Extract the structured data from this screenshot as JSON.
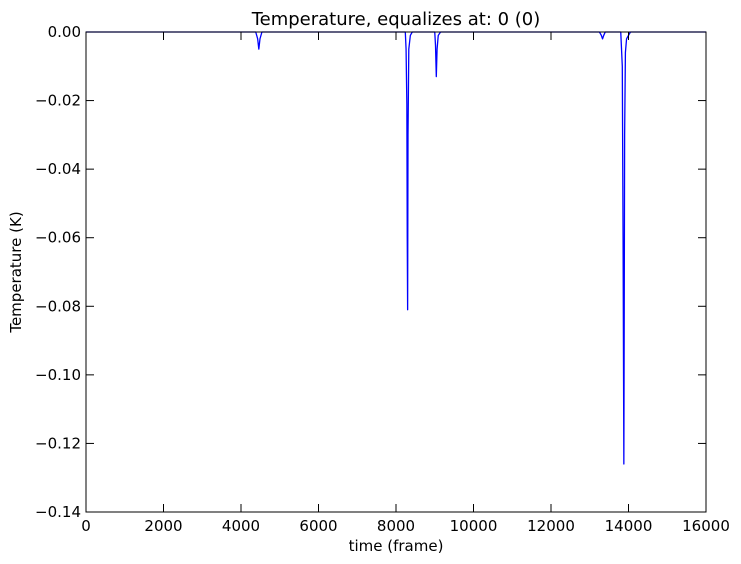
{
  "chart_data": {
    "type": "line",
    "title": "Temperature, equalizes at: 0 (0)",
    "xlabel": "time (frame)",
    "ylabel": "Temperature (K)",
    "xlim": [
      0,
      16000
    ],
    "ylim": [
      -0.14,
      0.0
    ],
    "xticks": [
      0,
      2000,
      4000,
      6000,
      8000,
      10000,
      12000,
      14000,
      16000
    ],
    "xtick_labels": [
      "0",
      "2000",
      "4000",
      "6000",
      "8000",
      "10000",
      "12000",
      "14000",
      "16000"
    ],
    "yticks": [
      0.0,
      -0.02,
      -0.04,
      -0.06,
      -0.08,
      -0.1,
      -0.12,
      -0.14
    ],
    "ytick_labels": [
      "0.00",
      "−0.02",
      "−0.04",
      "−0.06",
      "−0.08",
      "−0.10",
      "−0.12",
      "−0.14"
    ],
    "grid": false,
    "legend": "none",
    "series": [
      {
        "color": "#0000ff",
        "x": [
          0,
          4380,
          4430,
          4460,
          4490,
          4540,
          8240,
          8260,
          8280,
          8290,
          8300,
          8310,
          8330,
          8370,
          8420,
          8900,
          9000,
          9020,
          9040,
          9060,
          9090,
          9150,
          13250,
          13300,
          13330,
          13360,
          13400,
          13800,
          13840,
          13860,
          13880,
          13890,
          13900,
          13920,
          13950,
          14050,
          16000
        ],
        "y": [
          0,
          0,
          -0.002,
          -0.005,
          -0.002,
          0,
          0,
          -0.005,
          -0.021,
          -0.06,
          -0.081,
          -0.03,
          -0.005,
          -0.001,
          0,
          0,
          0,
          -0.004,
          -0.013,
          -0.005,
          -0.001,
          0,
          0,
          -0.001,
          -0.002,
          -0.001,
          0,
          0,
          -0.01,
          -0.06,
          -0.126,
          -0.08,
          -0.03,
          -0.006,
          -0.002,
          0,
          0
        ]
      }
    ]
  }
}
